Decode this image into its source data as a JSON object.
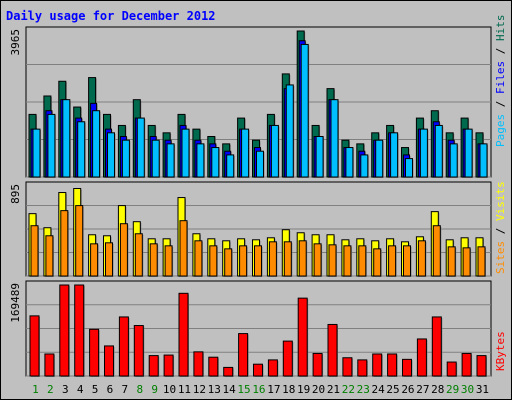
{
  "colors": {
    "hits": "#006a4e",
    "files": "#0000ff",
    "pages": "#00bfff",
    "visits": "#ffff00",
    "sites": "#ff8c00",
    "kbytes": "#ff0000",
    "panel_bg": "#c0c0c0",
    "title": "#0000ff",
    "weekend_day": "#008000",
    "weekday": "#000000"
  },
  "chart_data": {
    "type": "bar",
    "title": "Daily usage for December 2012",
    "categories": [
      "1",
      "2",
      "3",
      "4",
      "5",
      "6",
      "7",
      "8",
      "9",
      "10",
      "11",
      "12",
      "13",
      "14",
      "15",
      "16",
      "17",
      "18",
      "19",
      "20",
      "21",
      "22",
      "23",
      "24",
      "25",
      "26",
      "27",
      "28",
      "29",
      "30",
      "31"
    ],
    "weekend_days": [
      "1",
      "2",
      "8",
      "9",
      "15",
      "16",
      "22",
      "23",
      "29",
      "30"
    ],
    "grid": true,
    "panels": [
      {
        "name": "hits-files-pages",
        "ymax_label": "3965",
        "ylim": [
          0,
          3965
        ],
        "legend": [
          "Pages",
          "Files",
          "Hits"
        ],
        "series": [
          {
            "name": "Hits",
            "color_key": "hits",
            "values": [
              1700,
              2200,
              2600,
              1900,
              2700,
              1700,
              1400,
              2100,
              1400,
              1200,
              1700,
              1300,
              1100,
              900,
              1600,
              1000,
              1700,
              2800,
              3965,
              1400,
              2400,
              1000,
              900,
              1200,
              1400,
              800,
              1600,
              1800,
              1200,
              1600,
              1200
            ]
          },
          {
            "name": "Files",
            "color_key": "files",
            "values": [
              1300,
              1800,
              2100,
              1600,
              2000,
              1300,
              1100,
              1600,
              1100,
              1000,
              1400,
              1000,
              900,
              700,
              1300,
              800,
              1400,
              2400,
              3700,
              1100,
              2100,
              800,
              700,
              1000,
              1200,
              600,
              1300,
              1500,
              1000,
              1300,
              900
            ]
          },
          {
            "name": "Pages",
            "color_key": "pages",
            "values": [
              1300,
              1700,
              2100,
              1500,
              1800,
              1200,
              1000,
              1600,
              1000,
              900,
              1300,
              900,
              800,
              600,
              1300,
              700,
              1400,
              2500,
              3600,
              1100,
              2100,
              800,
              600,
              1000,
              1200,
              500,
              1300,
              1400,
              900,
              1300,
              900
            ]
          }
        ]
      },
      {
        "name": "visits-sites",
        "ymax_label": "895",
        "ylim": [
          0,
          895
        ],
        "legend": [
          "Sites",
          "Visits"
        ],
        "series": [
          {
            "name": "Visits",
            "color_key": "visits",
            "values": [
              620,
              480,
              830,
              870,
              410,
              400,
              700,
              540,
              370,
              370,
              780,
              420,
              370,
              350,
              370,
              360,
              380,
              460,
              430,
              410,
              410,
              360,
              370,
              350,
              370,
              340,
              390,
              640,
              360,
              380,
              380
            ]
          },
          {
            "name": "Sites",
            "color_key": "sites",
            "values": [
              500,
              400,
              650,
              700,
              320,
              330,
              520,
              420,
              320,
              300,
              550,
              350,
              300,
              270,
              300,
              300,
              340,
              340,
              350,
              320,
              310,
              300,
              300,
              270,
              300,
              300,
              350,
              500,
              290,
              280,
              290
            ]
          }
        ]
      },
      {
        "name": "kbytes",
        "ymax_label": "169489",
        "ylim": [
          0,
          169489
        ],
        "legend": [
          "KBytes"
        ],
        "series": [
          {
            "name": "KBytes",
            "color_key": "kbytes",
            "values": [
              112000,
              41000,
              169489,
              169489,
              87000,
              56000,
              110000,
              94000,
              38000,
              39000,
              154000,
              45000,
              35000,
              16000,
              79000,
              22000,
              30000,
              65000,
              145000,
              42000,
              96000,
              34000,
              30000,
              41000,
              41000,
              31000,
              69000,
              110000,
              26000,
              42000,
              38000
            ]
          }
        ]
      }
    ]
  }
}
